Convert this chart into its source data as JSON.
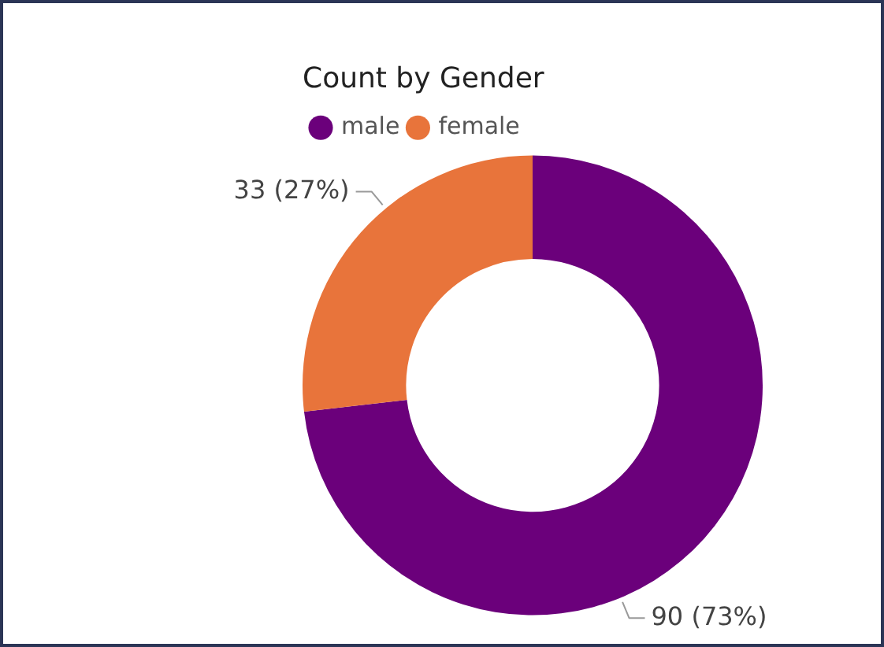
{
  "chart_data": {
    "type": "donut",
    "title": "Count by Gender",
    "categories": [
      "male",
      "female"
    ],
    "values": [
      90,
      33
    ],
    "colors": [
      "#6b007b",
      "#e8743b"
    ],
    "value_labels": [
      "90 (73%)",
      "33 (27%)"
    ],
    "legend": "top left"
  }
}
